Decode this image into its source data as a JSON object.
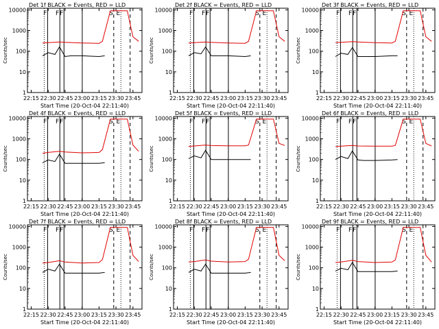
{
  "common": {
    "title_suffix": "BLACK = Events, RED = LLD",
    "xlabel": "Start Time (20-Oct-04 22:11:40)",
    "ylabel": "Counts/sec",
    "x_ticks": [
      "22:15",
      "22:30",
      "22:45",
      "23:00",
      "23:15",
      "23:30",
      "23:45"
    ],
    "y_ticks": [
      "1",
      "10",
      "100",
      "1000",
      "10000"
    ],
    "colors": {
      "events": "#000000",
      "lld": "#e00000"
    },
    "xlim": [
      "22:11:40",
      "23:53:00"
    ],
    "ylim": [
      1,
      12000
    ],
    "yscale": "log",
    "markers": [
      {
        "type": "dotted",
        "label": "",
        "time": "22:26:30"
      },
      {
        "type": "solid",
        "label": "F",
        "time": "22:29:30"
      },
      {
        "type": "solid",
        "label": "F",
        "time": "22:40:20"
      },
      {
        "type": "solid",
        "label": "F",
        "time": "22:44:00"
      },
      {
        "type": "solid",
        "label": "",
        "time": "23:00:10"
      },
      {
        "type": "dashed",
        "label": "S",
        "time": "23:28:00"
      },
      {
        "type": "dotted",
        "label": "E",
        "time": "23:34:20"
      },
      {
        "type": "dashed",
        "label": "",
        "time": "23:42:30"
      }
    ]
  },
  "chart_data": [
    {
      "type": "line",
      "title": "Det 1f",
      "yscale": "log",
      "series": [
        {
          "name": "Events",
          "x": [
            "22:25",
            "22:30",
            "22:36",
            "22:40",
            "22:45",
            "22:50",
            "23:00",
            "23:15",
            "23:20"
          ],
          "values": [
            60,
            85,
            70,
            160,
            55,
            60,
            60,
            55,
            60
          ]
        },
        {
          "name": "LLD",
          "x": [
            "22:25",
            "22:30",
            "22:40",
            "22:45",
            "23:00",
            "23:15",
            "23:18",
            "23:25",
            "23:40",
            "23:45",
            "23:50"
          ],
          "values": [
            250,
            260,
            280,
            270,
            250,
            240,
            300,
            9000,
            9000,
            500,
            300
          ]
        }
      ]
    },
    {
      "type": "line",
      "title": "Det 2f",
      "yscale": "log",
      "series": [
        {
          "name": "Events",
          "x": [
            "22:25",
            "22:30",
            "22:36",
            "22:40",
            "22:45",
            "22:50",
            "23:00",
            "23:15",
            "23:20"
          ],
          "values": [
            60,
            85,
            75,
            160,
            60,
            60,
            60,
            55,
            60
          ]
        },
        {
          "name": "LLD",
          "x": [
            "22:25",
            "22:30",
            "22:40",
            "22:45",
            "23:00",
            "23:15",
            "23:18",
            "23:25",
            "23:40",
            "23:45",
            "23:50"
          ],
          "values": [
            250,
            260,
            280,
            270,
            250,
            240,
            300,
            9000,
            9000,
            500,
            300
          ]
        }
      ]
    },
    {
      "type": "line",
      "title": "Det 3f",
      "yscale": "log",
      "series": [
        {
          "name": "Events",
          "x": [
            "22:25",
            "22:30",
            "22:36",
            "22:40",
            "22:45",
            "22:50",
            "23:00",
            "23:15",
            "23:20"
          ],
          "values": [
            55,
            80,
            70,
            150,
            55,
            55,
            55,
            60,
            60
          ]
        },
        {
          "name": "LLD",
          "x": [
            "22:25",
            "22:30",
            "22:40",
            "22:45",
            "23:00",
            "23:15",
            "23:18",
            "23:25",
            "23:40",
            "23:45",
            "23:50"
          ],
          "values": [
            260,
            270,
            290,
            280,
            260,
            250,
            300,
            9000,
            9000,
            500,
            300
          ]
        }
      ]
    },
    {
      "type": "line",
      "title": "Det 4f",
      "yscale": "log",
      "series": [
        {
          "name": "Events",
          "x": [
            "22:25",
            "22:30",
            "22:36",
            "22:40",
            "22:45",
            "22:50",
            "23:00",
            "23:15",
            "23:20"
          ],
          "values": [
            70,
            95,
            80,
            180,
            65,
            65,
            65,
            65,
            70
          ]
        },
        {
          "name": "LLD",
          "x": [
            "22:25",
            "22:30",
            "22:40",
            "22:45",
            "23:00",
            "23:15",
            "23:18",
            "23:25",
            "23:40",
            "23:45",
            "23:50"
          ],
          "values": [
            200,
            220,
            250,
            230,
            210,
            220,
            300,
            9000,
            9000,
            500,
            250
          ]
        }
      ]
    },
    {
      "type": "line",
      "title": "Det 5f",
      "yscale": "log",
      "series": [
        {
          "name": "Events",
          "x": [
            "22:25",
            "22:30",
            "22:36",
            "22:40",
            "22:45",
            "22:50",
            "23:00",
            "23:15",
            "23:20"
          ],
          "values": [
            110,
            150,
            120,
            280,
            100,
            100,
            100,
            100,
            100
          ]
        },
        {
          "name": "LLD",
          "x": [
            "22:25",
            "22:30",
            "22:40",
            "22:45",
            "23:00",
            "23:15",
            "23:18",
            "23:25",
            "23:40",
            "23:45",
            "23:50"
          ],
          "values": [
            430,
            450,
            500,
            470,
            460,
            460,
            500,
            9000,
            9000,
            600,
            480
          ]
        }
      ]
    },
    {
      "type": "line",
      "title": "Det 6f",
      "yscale": "log",
      "series": [
        {
          "name": "Events",
          "x": [
            "22:25",
            "22:30",
            "22:36",
            "22:40",
            "22:45",
            "22:50",
            "23:00",
            "23:15",
            "23:20"
          ],
          "values": [
            100,
            140,
            110,
            260,
            95,
            90,
            90,
            95,
            100
          ]
        },
        {
          "name": "LLD",
          "x": [
            "22:25",
            "22:30",
            "22:40",
            "22:45",
            "23:00",
            "23:15",
            "23:18",
            "23:25",
            "23:40",
            "23:45",
            "23:50"
          ],
          "values": [
            420,
            440,
            480,
            450,
            440,
            440,
            480,
            9000,
            9000,
            600,
            450
          ]
        }
      ]
    },
    {
      "type": "line",
      "title": "Det 7f",
      "yscale": "log",
      "series": [
        {
          "name": "Events",
          "x": [
            "22:25",
            "22:30",
            "22:36",
            "22:40",
            "22:45",
            "22:50",
            "23:00",
            "23:15",
            "23:20"
          ],
          "values": [
            60,
            85,
            70,
            150,
            55,
            55,
            55,
            55,
            60
          ]
        },
        {
          "name": "LLD",
          "x": [
            "22:25",
            "22:30",
            "22:40",
            "22:45",
            "23:00",
            "23:15",
            "23:18",
            "23:25",
            "23:40",
            "23:45",
            "23:50"
          ],
          "values": [
            170,
            180,
            220,
            190,
            170,
            180,
            250,
            9000,
            9000,
            400,
            200
          ]
        }
      ]
    },
    {
      "type": "line",
      "title": "Det 8f",
      "yscale": "log",
      "series": [
        {
          "name": "Events",
          "x": [
            "22:25",
            "22:30",
            "22:36",
            "22:40",
            "22:45",
            "22:50",
            "23:00",
            "23:15",
            "23:20"
          ],
          "values": [
            60,
            85,
            70,
            150,
            55,
            55,
            55,
            55,
            60
          ]
        },
        {
          "name": "LLD",
          "x": [
            "22:25",
            "22:30",
            "22:40",
            "22:45",
            "23:00",
            "23:15",
            "23:18",
            "23:25",
            "23:40",
            "23:45",
            "23:50"
          ],
          "values": [
            190,
            200,
            240,
            210,
            190,
            200,
            260,
            9000,
            9000,
            400,
            220
          ]
        }
      ]
    },
    {
      "type": "line",
      "title": "Det 9f",
      "yscale": "log",
      "series": [
        {
          "name": "Events",
          "x": [
            "22:25",
            "22:30",
            "22:36",
            "22:40",
            "22:45",
            "22:50",
            "23:00",
            "23:15",
            "23:20"
          ],
          "values": [
            70,
            95,
            80,
            180,
            65,
            65,
            65,
            65,
            70
          ]
        },
        {
          "name": "LLD",
          "x": [
            "22:25",
            "22:30",
            "22:40",
            "22:45",
            "23:00",
            "23:15",
            "23:18",
            "23:25",
            "23:40",
            "23:45",
            "23:50"
          ],
          "values": [
            180,
            190,
            230,
            200,
            180,
            190,
            240,
            9000,
            9000,
            400,
            190
          ]
        }
      ]
    }
  ]
}
